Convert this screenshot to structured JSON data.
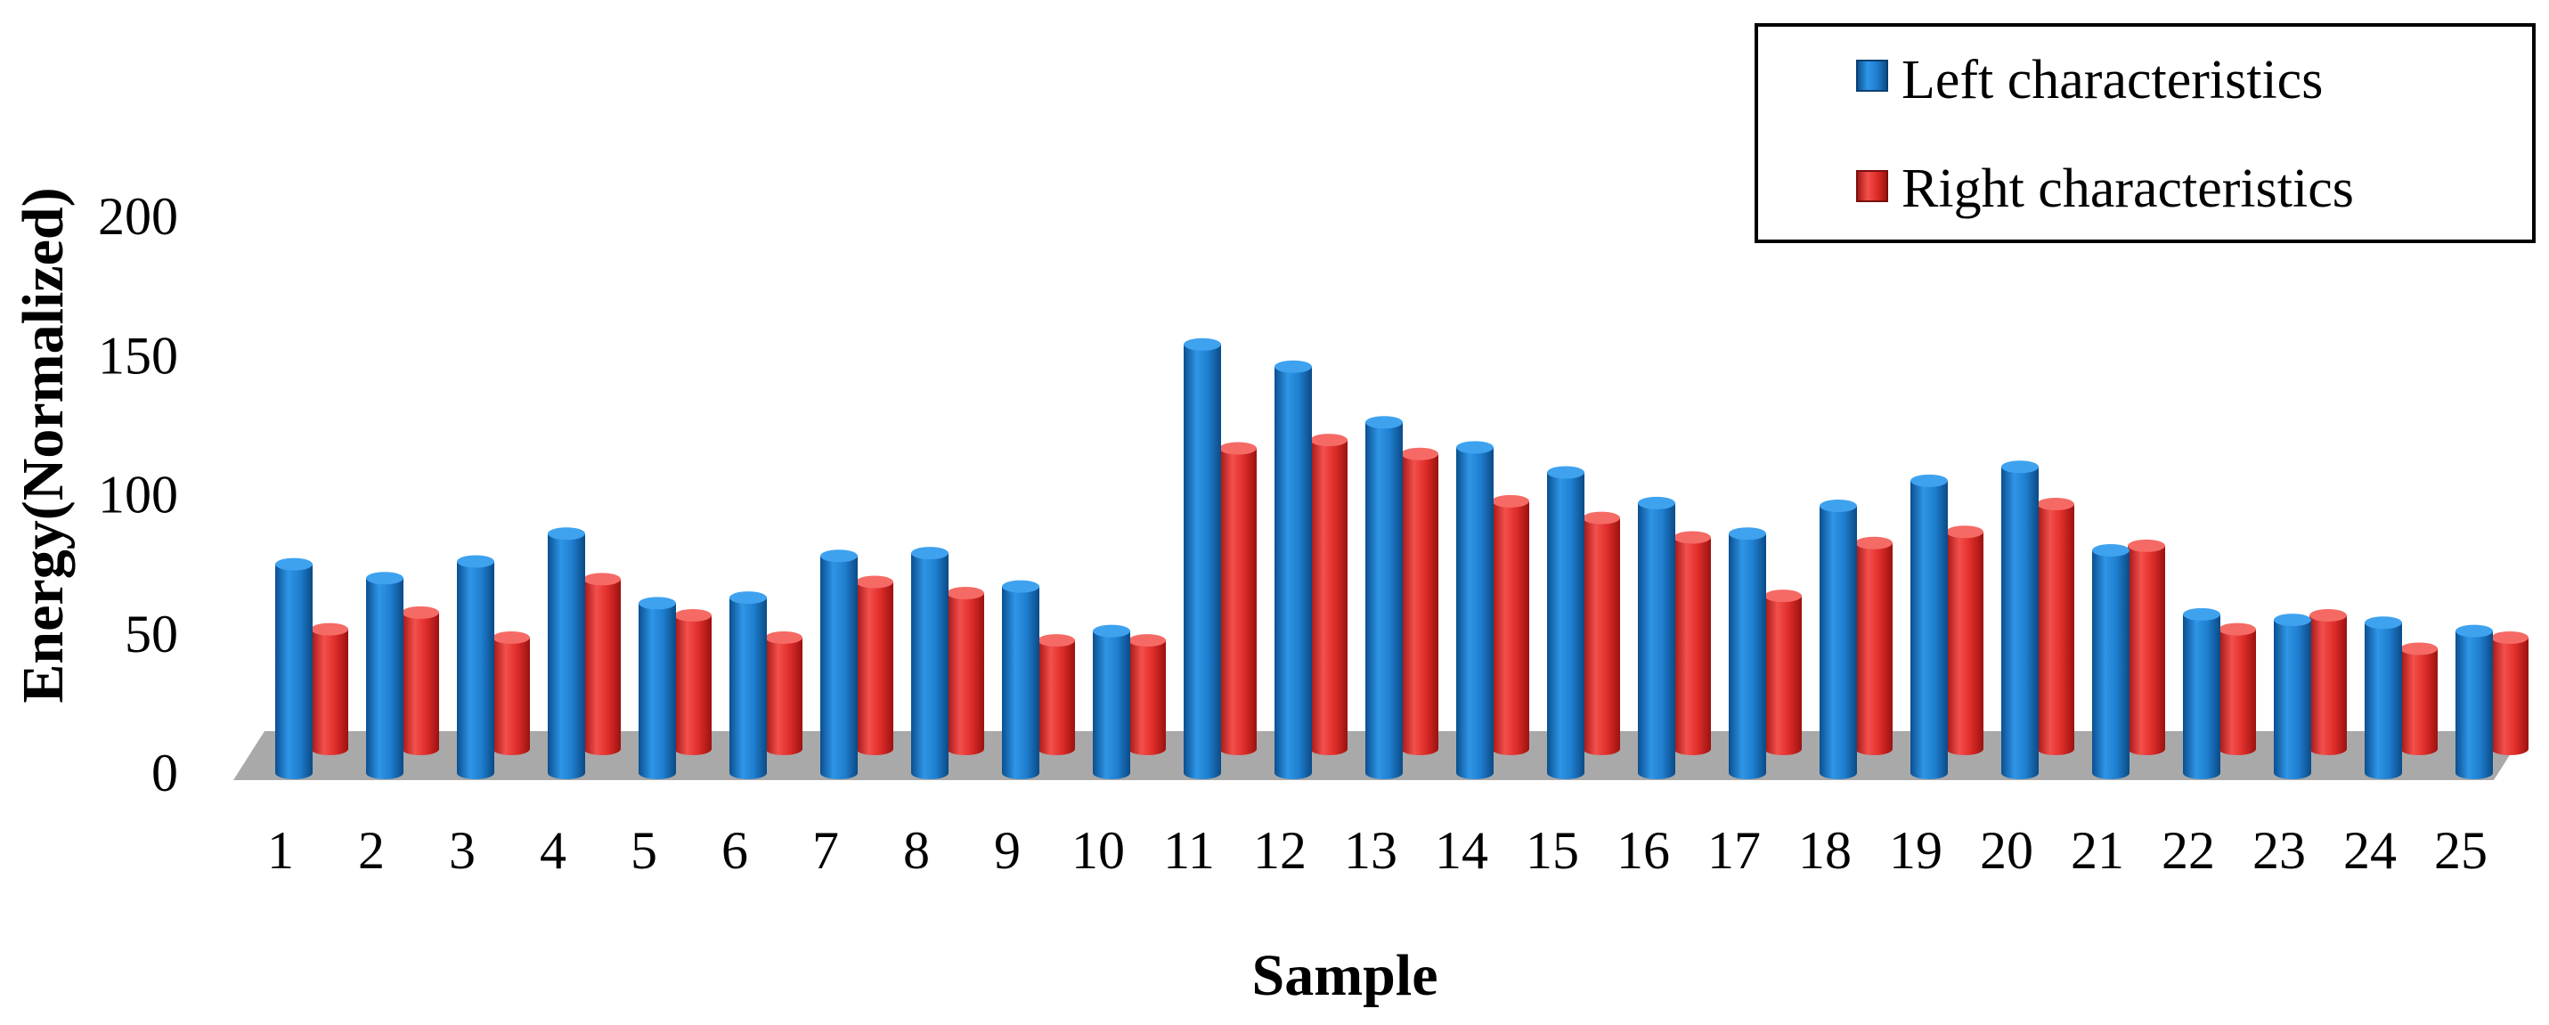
{
  "chart_data": {
    "type": "bar",
    "title": "",
    "xlabel": "Sample",
    "ylabel": "Energy(Normalized)",
    "ylim": [
      0,
      200
    ],
    "yticks": [
      0,
      50,
      100,
      150,
      200
    ],
    "categories": [
      "1",
      "2",
      "3",
      "4",
      "5",
      "6",
      "7",
      "8",
      "9",
      "10",
      "11",
      "12",
      "13",
      "14",
      "15",
      "16",
      "17",
      "18",
      "19",
      "20",
      "21",
      "22",
      "23",
      "24",
      "25"
    ],
    "series": [
      {
        "name": "Left characteristics",
        "color": "#1f7fd0",
        "values": [
          75,
          70,
          76,
          86,
          61,
          63,
          78,
          79,
          67,
          51,
          154,
          146,
          126,
          117,
          108,
          97,
          86,
          96,
          105,
          110,
          80,
          57,
          55,
          54,
          51
        ]
      },
      {
        "name": "Right characteristics",
        "color": "#e8322f",
        "values": [
          43,
          49,
          40,
          61,
          48,
          40,
          60,
          56,
          39,
          39,
          108,
          111,
          106,
          89,
          83,
          76,
          55,
          74,
          78,
          88,
          73,
          43,
          48,
          36,
          40
        ]
      }
    ],
    "grid": false,
    "legend_position": "top-right",
    "style": "3d-column"
  }
}
